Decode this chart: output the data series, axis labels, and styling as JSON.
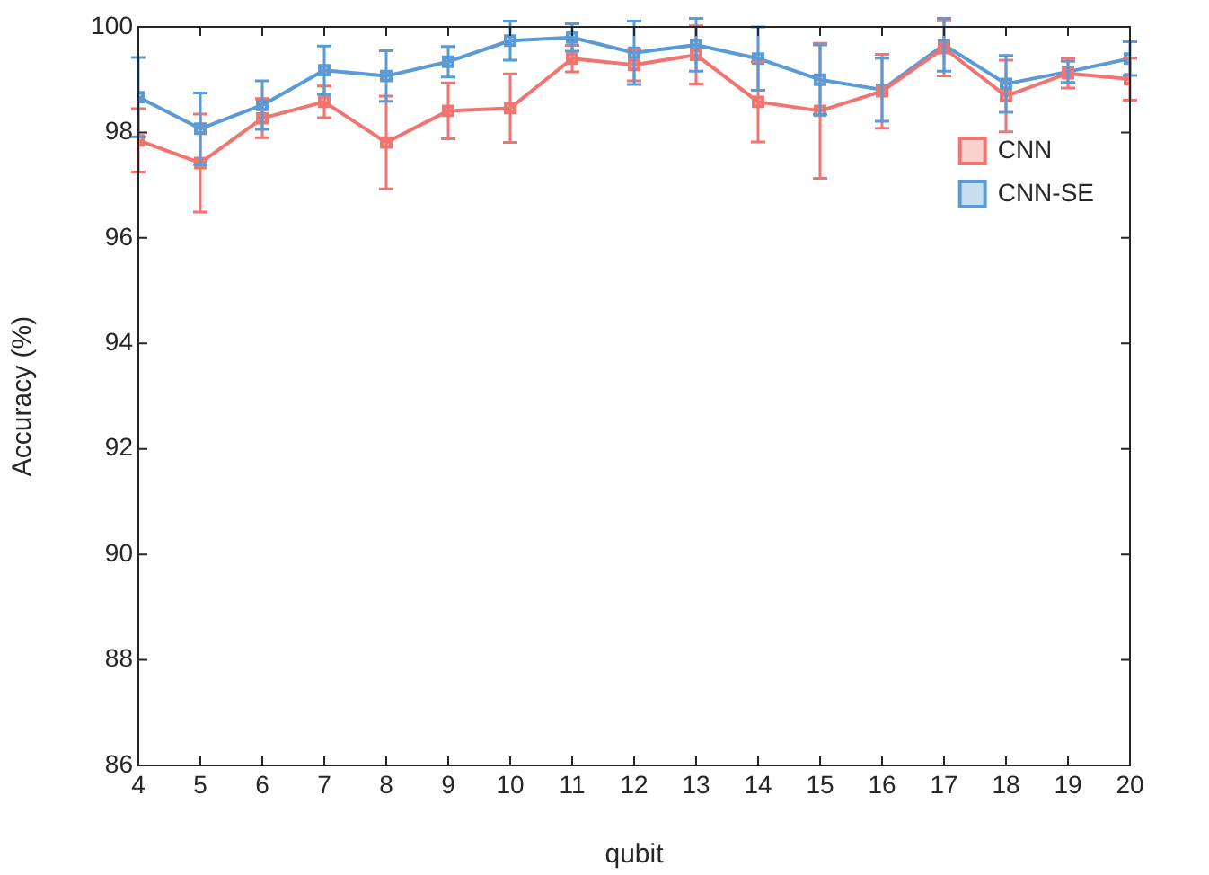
{
  "chart_data": {
    "type": "line",
    "xlabel": "qubit",
    "ylabel": "Accuracy (%)",
    "x": [
      4,
      5,
      6,
      7,
      8,
      9,
      10,
      11,
      12,
      13,
      14,
      15,
      16,
      17,
      18,
      19,
      20
    ],
    "xlim": [
      4,
      20
    ],
    "xticks": [
      4,
      5,
      6,
      7,
      8,
      9,
      10,
      11,
      12,
      13,
      14,
      15,
      16,
      17,
      18,
      19,
      20
    ],
    "ylim": [
      86,
      100
    ],
    "yticks": [
      86,
      88,
      90,
      92,
      94,
      96,
      98,
      100
    ],
    "series": [
      {
        "name": "CNN",
        "color": "#f07470",
        "values": [
          97.85,
          97.42,
          98.27,
          98.58,
          97.81,
          98.41,
          98.46,
          99.4,
          99.28,
          99.47,
          98.58,
          98.41,
          98.78,
          99.6,
          98.69,
          99.12,
          99.01
        ],
        "errors": [
          0.6,
          0.93,
          0.37,
          0.3,
          0.88,
          0.53,
          0.65,
          0.25,
          0.3,
          0.55,
          0.76,
          1.28,
          0.7,
          0.53,
          0.68,
          0.28,
          0.4
        ]
      },
      {
        "name": "CNN-SE",
        "color": "#5b9bd5",
        "values": [
          98.67,
          98.07,
          98.52,
          99.18,
          99.07,
          99.34,
          99.74,
          99.8,
          99.51,
          99.66,
          99.4,
          99.0,
          98.81,
          99.66,
          98.92,
          99.15,
          99.4
        ],
        "errors": [
          0.75,
          0.68,
          0.46,
          0.46,
          0.48,
          0.29,
          0.37,
          0.26,
          0.6,
          0.5,
          0.6,
          0.66,
          0.6,
          0.5,
          0.54,
          0.2,
          0.32
        ]
      }
    ],
    "marker": "square",
    "line_style": "solid",
    "grid": false,
    "legend": "top right"
  }
}
